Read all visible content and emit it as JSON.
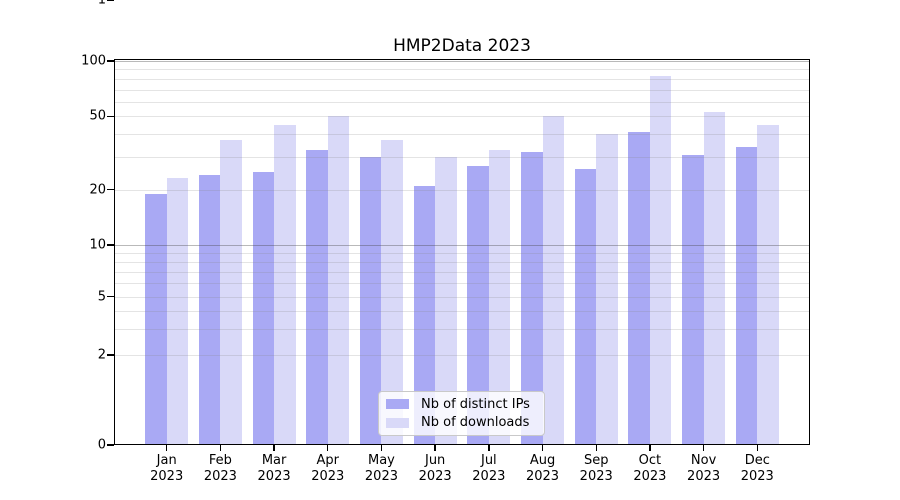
{
  "title": "HMP2Data 2023",
  "chart_data": {
    "type": "bar",
    "title": "HMP2Data 2023",
    "categories": [
      "Jan",
      "Feb",
      "Mar",
      "Apr",
      "May",
      "Jun",
      "Jul",
      "Aug",
      "Sep",
      "Oct",
      "Nov",
      "Dec"
    ],
    "year": "2023",
    "series": [
      {
        "name": "Nb of distinct IPs",
        "color": "#a9a9f4",
        "values": [
          19,
          24,
          25,
          33,
          30,
          21,
          27,
          32,
          26,
          41,
          31,
          34
        ]
      },
      {
        "name": "Nb of downloads",
        "color": "#d9d9f8",
        "values": [
          23,
          37,
          45,
          50,
          37,
          30,
          33,
          50,
          40,
          83,
          53,
          45
        ]
      }
    ],
    "xlabel": "",
    "ylabel": "",
    "yscale": "symlog",
    "ylim": [
      0,
      100
    ],
    "ytick_labels": [
      "100",
      "50",
      "20",
      "10",
      "5",
      "2",
      "1",
      "0"
    ],
    "grid": "horizontal log gridlines, minor lines between decades, drawn over bars",
    "legend_position": "inside lower-center"
  },
  "legend": {
    "items": [
      {
        "label": "Nb of distinct IPs",
        "color": "#a9a9f4"
      },
      {
        "label": "Nb of downloads",
        "color": "#d9d9f8"
      }
    ]
  }
}
